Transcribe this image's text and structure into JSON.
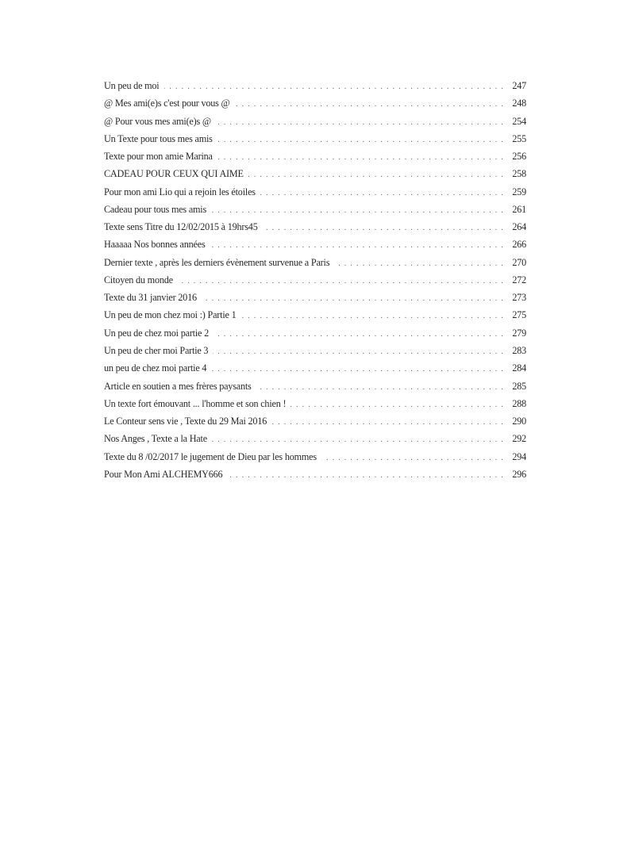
{
  "toc": {
    "entries": [
      {
        "title": "Un peu de moi",
        "page": "247"
      },
      {
        "title": "@ Mes ami(e)s c'est pour vous @",
        "page": "248"
      },
      {
        "title": "@ Pour vous mes ami(e)s @",
        "page": "254"
      },
      {
        "title": "Un Texte pour tous mes amis",
        "page": "255"
      },
      {
        "title": "Texte pour mon amie Marina",
        "page": "256"
      },
      {
        "title": "CADEAU POUR CEUX QUI AIME",
        "page": "258"
      },
      {
        "title": "Pour mon ami Lio qui a rejoin les étoiles",
        "page": "259"
      },
      {
        "title": "Cadeau pour tous mes amis",
        "page": "261"
      },
      {
        "title": "Texte sens Titre du 12/02/2015 à 19hrs45",
        "page": "264"
      },
      {
        "title": "Haaaaa Nos bonnes années",
        "page": "266"
      },
      {
        "title": "Dernier texte , après les derniers évènement survenue a Paris",
        "page": "270"
      },
      {
        "title": "Citoyen du monde",
        "page": "272"
      },
      {
        "title": "Texte du 31 janvier 2016",
        "page": "273"
      },
      {
        "title": "Un peu de mon chez moi :) Partie 1",
        "page": "275"
      },
      {
        "title": "Un peu de chez moi partie 2",
        "page": "279"
      },
      {
        "title": "Un peu de cher moi Partie 3",
        "page": "283"
      },
      {
        "title": "un peu de chez moi partie 4",
        "page": "284"
      },
      {
        "title": "Article en soutien a mes frères paysants",
        "page": "285"
      },
      {
        "title": "Un texte fort émouvant ... l'homme et son chien !",
        "page": "288"
      },
      {
        "title": "Le Conteur sens vie , Texte du 29 Mai 2016",
        "page": "290"
      },
      {
        "title": "Nos Anges , Texte a la Hate",
        "page": "292"
      },
      {
        "title": "Texte du 8 /02/2017 le jugement de Dieu par les hommes",
        "page": "294"
      },
      {
        "title": "Pour Mon Ami ALCHEMY666",
        "page": "296"
      }
    ]
  }
}
